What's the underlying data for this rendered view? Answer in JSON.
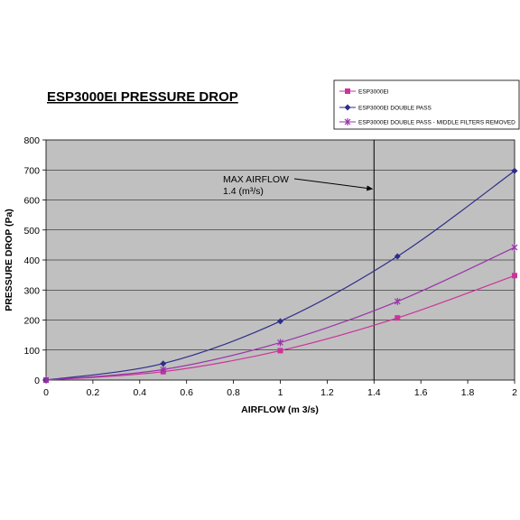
{
  "chart_data": {
    "type": "line",
    "title": "ESP3000EI PRESSURE DROP",
    "xlabel": "AIRFLOW (m 3/s)",
    "ylabel": "PRESSURE DROP (Pa)",
    "xlim": [
      0,
      2
    ],
    "ylim": [
      0,
      800
    ],
    "x_ticks": [
      "0",
      "0.2",
      "0.4",
      "0.6",
      "0.8",
      "1",
      "1.2",
      "1.4",
      "1.6",
      "1.8",
      "2"
    ],
    "y_ticks": [
      "0",
      "100",
      "200",
      "300",
      "400",
      "500",
      "600",
      "700",
      "800"
    ],
    "grid": "horizontal",
    "plot_background": "#c0c0c0",
    "legend_position": "top-right",
    "series": [
      {
        "name": "ESP3000EI",
        "color": "#cc3399",
        "marker": "square",
        "x": [
          0,
          0.5,
          1,
          1.5,
          2
        ],
        "y": [
          0,
          28,
          98,
          207,
          348
        ]
      },
      {
        "name": "ESP3000EI DOUBLE PASS",
        "color": "#2e2e8a",
        "marker": "diamond",
        "x": [
          0,
          0.5,
          1,
          1.5,
          2
        ],
        "y": [
          0,
          55,
          196,
          412,
          697
        ]
      },
      {
        "name": "ESP3000EI DOUBLE PASS  - MIDDLE FILTERS REMOVED",
        "color": "#9933aa",
        "marker": "star",
        "x": [
          0,
          0.5,
          1,
          1.5,
          2
        ],
        "y": [
          0,
          35,
          125,
          262,
          442
        ]
      }
    ],
    "annotation": {
      "line1": "MAX AIRFLOW",
      "line2": "1.4 (m³/s)",
      "vline_x": 1.4,
      "arrow_target_y": 637
    }
  }
}
